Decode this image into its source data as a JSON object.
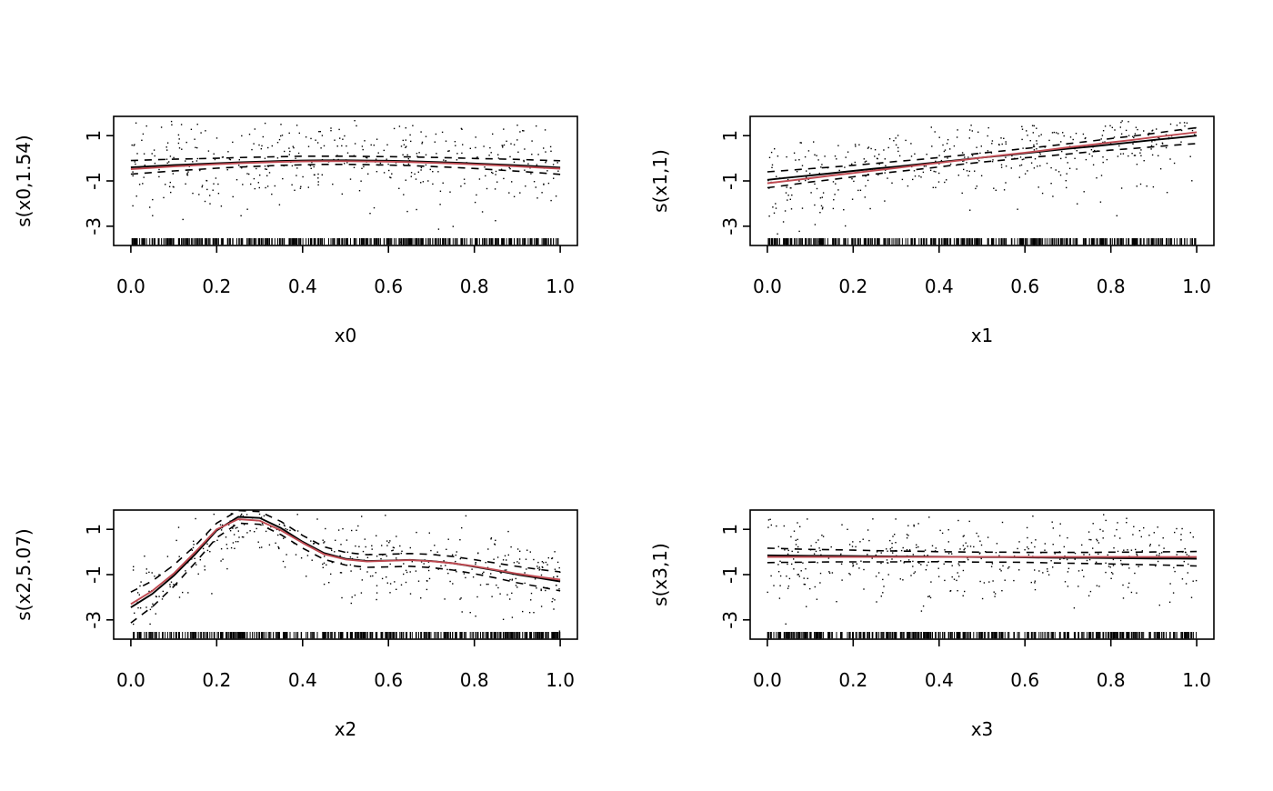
{
  "figure": {
    "background": "#ffffff",
    "colors": {
      "fit": "#000000",
      "ci": "#000000",
      "true_function": "#bf4a52",
      "points": "#000000",
      "rug": "#000000"
    }
  },
  "chart_data": [
    {
      "type": "scatter",
      "name": "smooth-x0",
      "xlabel": "x0",
      "ylabel": "s(x0,1.54)",
      "xlim": [
        -0.04,
        1.04
      ],
      "ylim": [
        -3.85,
        1.85
      ],
      "xticks": [
        0,
        0.2,
        0.4,
        0.6,
        0.8,
        1
      ],
      "xtick_labels": [
        "0.0",
        "0.2",
        "0.4",
        "0.6",
        "0.8",
        "1.0"
      ],
      "yticks": [
        -3,
        -1,
        1
      ],
      "ytick_labels": [
        "-3",
        "-1",
        "1"
      ],
      "x": [
        0,
        0.05,
        0.1,
        0.15,
        0.2,
        0.25,
        0.3,
        0.35,
        0.4,
        0.45,
        0.5,
        0.55,
        0.6,
        0.65,
        0.7,
        0.75,
        0.8,
        0.85,
        0.9,
        0.95,
        1
      ],
      "series": {
        "fit": [
          -0.4,
          -0.35,
          -0.3,
          -0.26,
          -0.22,
          -0.18,
          -0.15,
          -0.12,
          -0.1,
          -0.09,
          -0.09,
          -0.1,
          -0.11,
          -0.13,
          -0.16,
          -0.19,
          -0.23,
          -0.27,
          -0.31,
          -0.36,
          -0.41
        ],
        "ci_upper": [
          -0.1,
          -0.07,
          -0.04,
          -0.02,
          0.0,
          0.03,
          0.05,
          0.07,
          0.09,
          0.09,
          0.09,
          0.08,
          0.07,
          0.06,
          0.04,
          0.02,
          -0.01,
          -0.03,
          -0.05,
          -0.08,
          -0.11
        ],
        "ci_lower": [
          -0.7,
          -0.63,
          -0.56,
          -0.5,
          -0.44,
          -0.39,
          -0.35,
          -0.31,
          -0.29,
          -0.27,
          -0.27,
          -0.28,
          -0.3,
          -0.32,
          -0.36,
          -0.4,
          -0.45,
          -0.51,
          -0.57,
          -0.64,
          -0.71
        ],
        "true_function": [
          -0.48,
          -0.42,
          -0.36,
          -0.31,
          -0.26,
          -0.22,
          -0.19,
          -0.16,
          -0.14,
          -0.13,
          -0.13,
          -0.14,
          -0.15,
          -0.17,
          -0.2,
          -0.23,
          -0.27,
          -0.31,
          -0.36,
          -0.41,
          -0.46
        ]
      },
      "residuals": {
        "seed": 11,
        "n": 420,
        "sd": 0.95,
        "marker": "dot"
      },
      "rug": true
    },
    {
      "type": "scatter",
      "name": "smooth-x1",
      "xlabel": "x1",
      "ylabel": "s(x1,1)",
      "xlim": [
        -0.04,
        1.04
      ],
      "ylim": [
        -3.85,
        1.85
      ],
      "xticks": [
        0,
        0.2,
        0.4,
        0.6,
        0.8,
        1
      ],
      "xtick_labels": [
        "0.0",
        "0.2",
        "0.4",
        "0.6",
        "0.8",
        "1.0"
      ],
      "yticks": [
        -3,
        -1,
        1
      ],
      "ytick_labels": [
        "-3",
        "-1",
        "1"
      ],
      "x": [
        0,
        0.05,
        0.1,
        0.15,
        0.2,
        0.25,
        0.3,
        0.35,
        0.4,
        0.45,
        0.5,
        0.55,
        0.6,
        0.65,
        0.7,
        0.75,
        0.8,
        0.85,
        0.9,
        0.95,
        1
      ],
      "series": {
        "fit": [
          -0.95,
          -0.85,
          -0.76,
          -0.66,
          -0.56,
          -0.46,
          -0.37,
          -0.27,
          -0.17,
          -0.07,
          0.03,
          0.12,
          0.22,
          0.32,
          0.42,
          0.51,
          0.61,
          0.71,
          0.81,
          0.9,
          1.0
        ],
        "ci_upper": [
          -0.6,
          -0.53,
          -0.46,
          -0.39,
          -0.31,
          -0.23,
          -0.14,
          -0.06,
          0.03,
          0.13,
          0.23,
          0.33,
          0.43,
          0.53,
          0.64,
          0.75,
          0.87,
          0.98,
          1.1,
          1.23,
          1.35
        ],
        "ci_lower": [
          -1.3,
          -1.18,
          -1.05,
          -0.94,
          -0.82,
          -0.7,
          -0.59,
          -0.49,
          -0.38,
          -0.27,
          -0.17,
          -0.08,
          0.02,
          0.1,
          0.19,
          0.28,
          0.36,
          0.43,
          0.51,
          0.58,
          0.65
        ],
        "true_function": [
          -1.1,
          -0.99,
          -0.88,
          -0.76,
          -0.65,
          -0.54,
          -0.43,
          -0.31,
          -0.2,
          -0.09,
          0.03,
          0.14,
          0.25,
          0.36,
          0.48,
          0.59,
          0.7,
          0.81,
          0.93,
          1.04,
          1.15
        ]
      },
      "residuals": {
        "seed": 22,
        "n": 420,
        "sd": 0.95,
        "marker": "dot"
      },
      "rug": true
    },
    {
      "type": "scatter",
      "name": "smooth-x2",
      "xlabel": "x2",
      "ylabel": "s(x2,5.07)",
      "xlim": [
        -0.04,
        1.04
      ],
      "ylim": [
        -3.85,
        1.85
      ],
      "xticks": [
        0,
        0.2,
        0.4,
        0.6,
        0.8,
        1
      ],
      "xtick_labels": [
        "0.0",
        "0.2",
        "0.4",
        "0.6",
        "0.8",
        "1.0"
      ],
      "yticks": [
        -3,
        -1,
        1
      ],
      "ytick_labels": [
        "-3",
        "-1",
        "1"
      ],
      "x": [
        0,
        0.05,
        0.1,
        0.15,
        0.2,
        0.25,
        0.3,
        0.35,
        0.4,
        0.45,
        0.5,
        0.55,
        0.6,
        0.65,
        0.7,
        0.75,
        0.8,
        0.85,
        0.9,
        0.95,
        1
      ],
      "series": {
        "fit": [
          -2.45,
          -1.85,
          -1.05,
          -0.1,
          0.95,
          1.55,
          1.5,
          1.05,
          0.45,
          -0.05,
          -0.3,
          -0.4,
          -0.38,
          -0.35,
          -0.4,
          -0.5,
          -0.65,
          -0.82,
          -1.0,
          -1.15,
          -1.3
        ],
        "ci_upper": [
          -1.77,
          -1.28,
          -0.58,
          0.28,
          1.27,
          1.83,
          1.78,
          1.34,
          0.73,
          0.23,
          -0.02,
          -0.12,
          -0.1,
          -0.07,
          -0.11,
          -0.2,
          -0.34,
          -0.49,
          -0.64,
          -0.77,
          -0.88
        ],
        "ci_lower": [
          -3.13,
          -2.42,
          -1.52,
          -0.48,
          0.63,
          1.27,
          1.22,
          0.76,
          0.17,
          -0.33,
          -0.58,
          -0.68,
          -0.66,
          -0.63,
          -0.69,
          -0.8,
          -0.96,
          -1.15,
          -1.36,
          -1.53,
          -1.72
        ],
        "true_function": [
          -2.3,
          -1.72,
          -0.95,
          0.0,
          1.0,
          1.45,
          1.38,
          0.95,
          0.4,
          -0.1,
          -0.33,
          -0.42,
          -0.39,
          -0.36,
          -0.41,
          -0.5,
          -0.63,
          -0.79,
          -0.96,
          -1.1,
          -1.22
        ]
      },
      "residuals": {
        "seed": 33,
        "n": 420,
        "sd": 0.85,
        "marker": "dot"
      },
      "rug": true
    },
    {
      "type": "scatter",
      "name": "smooth-x3",
      "xlabel": "x3",
      "ylabel": "s(x3,1)",
      "xlim": [
        -0.04,
        1.04
      ],
      "ylim": [
        -3.85,
        1.85
      ],
      "xticks": [
        0,
        0.2,
        0.4,
        0.6,
        0.8,
        1
      ],
      "xtick_labels": [
        "0.0",
        "0.2",
        "0.4",
        "0.6",
        "0.8",
        "1.0"
      ],
      "yticks": [
        -3,
        -1,
        1
      ],
      "ytick_labels": [
        "-3",
        "-1",
        "1"
      ],
      "x": [
        0,
        0.05,
        0.1,
        0.15,
        0.2,
        0.25,
        0.3,
        0.35,
        0.4,
        0.45,
        0.5,
        0.55,
        0.6,
        0.65,
        0.7,
        0.75,
        0.8,
        0.85,
        0.9,
        0.95,
        1
      ],
      "series": {
        "fit": [
          -0.15,
          -0.16,
          -0.17,
          -0.17,
          -0.18,
          -0.19,
          -0.2,
          -0.2,
          -0.21,
          -0.22,
          -0.23,
          -0.23,
          -0.24,
          -0.25,
          -0.26,
          -0.26,
          -0.27,
          -0.28,
          -0.29,
          -0.29,
          -0.3
        ],
        "ci_upper": [
          0.17,
          0.14,
          0.11,
          0.1,
          0.08,
          0.06,
          0.04,
          0.03,
          0.01,
          0.0,
          -0.01,
          -0.01,
          -0.02,
          -0.02,
          -0.02,
          -0.02,
          -0.01,
          -0.01,
          0.0,
          0.01,
          0.02
        ],
        "ci_lower": [
          -0.47,
          -0.46,
          -0.45,
          -0.44,
          -0.44,
          -0.44,
          -0.44,
          -0.43,
          -0.43,
          -0.44,
          -0.45,
          -0.45,
          -0.46,
          -0.48,
          -0.5,
          -0.51,
          -0.53,
          -0.55,
          -0.57,
          -0.59,
          -0.62
        ],
        "true_function": [
          -0.22,
          -0.22,
          -0.22,
          -0.22,
          -0.22,
          -0.22,
          -0.22,
          -0.22,
          -0.22,
          -0.22,
          -0.22,
          -0.22,
          -0.22,
          -0.22,
          -0.22,
          -0.22,
          -0.22,
          -0.22,
          -0.22,
          -0.22,
          -0.22
        ]
      },
      "residuals": {
        "seed": 44,
        "n": 420,
        "sd": 0.95,
        "marker": "dot"
      },
      "rug": true
    }
  ]
}
